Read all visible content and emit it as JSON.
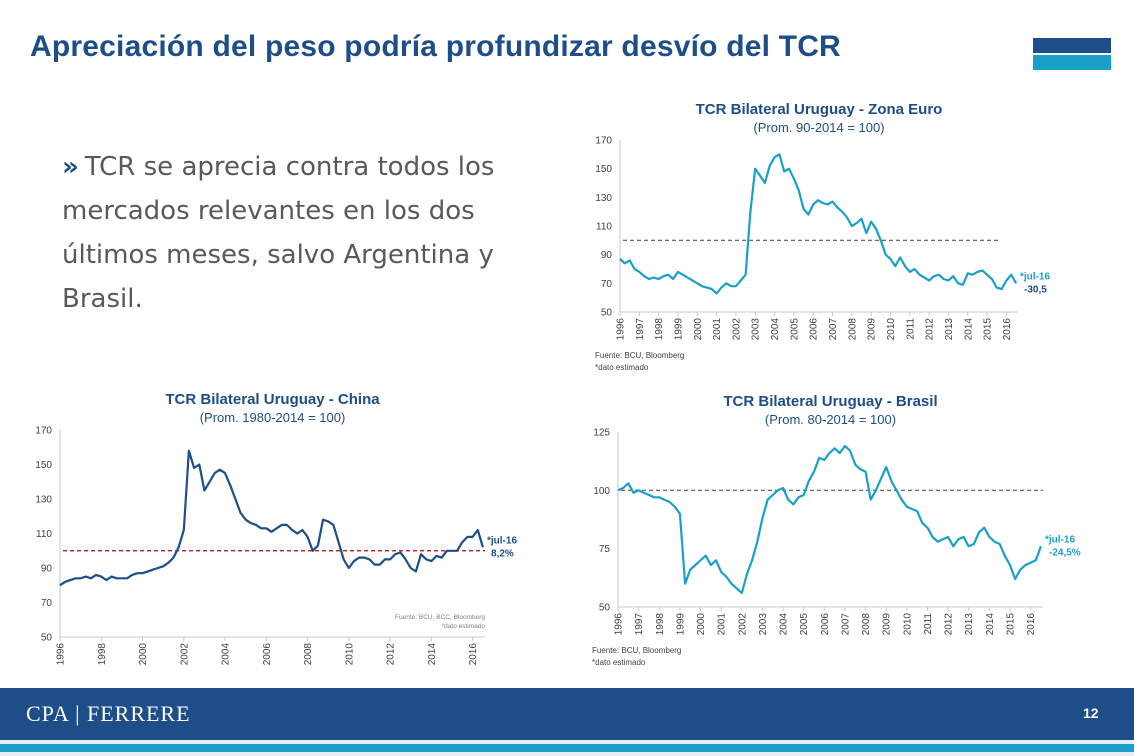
{
  "slide": {
    "title": "Apreciación del peso podría profundizar desvío del TCR",
    "bullet_marker": "»",
    "bullet_text": "TCR se aprecia contra todos los mercados relevantes en los dos últimos meses, salvo Argentina y Brasil.",
    "footer_brand": "CPA | FERRERE",
    "page_number": "12",
    "colors": {
      "title": "#1d4e89",
      "footer_bg": "#1d4e89",
      "accent": "#1aa0c8",
      "body_text": "#595959"
    }
  },
  "chart_data": [
    {
      "id": "euro",
      "type": "line",
      "title": "TCR Bilateral Uruguay - Zona Euro",
      "subtitle": "(Prom. 90-2014 = 100)",
      "xlabel": "",
      "ylabel": "",
      "x_ticks": [
        "1996",
        "1997",
        "1998",
        "1999",
        "2000",
        "2001",
        "2002",
        "2003",
        "2004",
        "2005",
        "2006",
        "2007",
        "2008",
        "2009",
        "2010",
        "2011",
        "2012",
        "2013",
        "2014",
        "2015",
        "2016"
      ],
      "xlim": [
        1996,
        2016.6
      ],
      "y_ticks": [
        50,
        70,
        90,
        110,
        130,
        150,
        170
      ],
      "ylim": [
        50,
        170
      ],
      "grid": false,
      "reference_line": {
        "value": 100,
        "style": "dashed",
        "color": "#555555"
      },
      "series_color": "#1aa0c8",
      "x": [
        1996.0,
        1996.25,
        1996.5,
        1996.75,
        1997.0,
        1997.25,
        1997.5,
        1997.75,
        1998.0,
        1998.25,
        1998.5,
        1998.75,
        1999.0,
        1999.25,
        1999.5,
        1999.75,
        2000.0,
        2000.25,
        2000.5,
        2000.75,
        2001.0,
        2001.25,
        2001.5,
        2001.75,
        2002.0,
        2002.25,
        2002.5,
        2002.75,
        2003.0,
        2003.25,
        2003.5,
        2003.75,
        2004.0,
        2004.25,
        2004.5,
        2004.75,
        2005.0,
        2005.25,
        2005.5,
        2005.75,
        2006.0,
        2006.25,
        2006.5,
        2006.75,
        2007.0,
        2007.25,
        2007.5,
        2007.75,
        2008.0,
        2008.25,
        2008.5,
        2008.75,
        2009.0,
        2009.25,
        2009.5,
        2009.75,
        2010.0,
        2010.25,
        2010.5,
        2010.75,
        2011.0,
        2011.25,
        2011.5,
        2011.75,
        2012.0,
        2012.25,
        2012.5,
        2012.75,
        2013.0,
        2013.25,
        2013.5,
        2013.75,
        2014.0,
        2014.25,
        2014.5,
        2014.75,
        2015.0,
        2015.25,
        2015.5,
        2015.75,
        2016.0,
        2016.25,
        2016.5
      ],
      "values": [
        87,
        84,
        86,
        80,
        78,
        75,
        73,
        74,
        73,
        75,
        76,
        73,
        78,
        76,
        74,
        72,
        70,
        68,
        67,
        66,
        63,
        67,
        70,
        68,
        68,
        72,
        76,
        120,
        150,
        145,
        140,
        152,
        158,
        160,
        148,
        150,
        143,
        135,
        122,
        118,
        125,
        128,
        126,
        125,
        127,
        123,
        120,
        116,
        110,
        112,
        115,
        105,
        113,
        108,
        100,
        90,
        87,
        82,
        88,
        82,
        78,
        80,
        76,
        74,
        72,
        75,
        76,
        73,
        72,
        75,
        70,
        69,
        77,
        76,
        78,
        79,
        76,
        73,
        67,
        66,
        72,
        76,
        70
      ],
      "annotation": {
        "label": "*jul-16",
        "value_label": "-30,5",
        "color": "#1aa0c8"
      },
      "source": "Fuente: BCU, Bloomberg",
      "note": "*dato estimado"
    },
    {
      "id": "china",
      "type": "line",
      "title": "TCR Bilateral Uruguay - China",
      "subtitle": "(Prom. 1980-2014 = 100)",
      "xlabel": "",
      "ylabel": "",
      "x_ticks": [
        "1996",
        "1998",
        "2000",
        "2002",
        "2004",
        "2006",
        "2008",
        "2010",
        "2012",
        "2014",
        "2016"
      ],
      "xlim": [
        1996,
        2016.6
      ],
      "y_ticks": [
        50,
        70,
        90,
        110,
        130,
        150,
        170
      ],
      "ylim": [
        50,
        170
      ],
      "grid": false,
      "reference_line": {
        "value": 100,
        "style": "dashed",
        "color": "#c00000"
      },
      "series_color": "#1d4e89",
      "x": [
        1996.0,
        1996.25,
        1996.5,
        1996.75,
        1997.0,
        1997.25,
        1997.5,
        1997.75,
        1998.0,
        1998.25,
        1998.5,
        1998.75,
        1999.0,
        1999.25,
        1999.5,
        1999.75,
        2000.0,
        2000.25,
        2000.5,
        2000.75,
        2001.0,
        2001.25,
        2001.5,
        2001.75,
        2002.0,
        2002.25,
        2002.5,
        2002.75,
        2003.0,
        2003.25,
        2003.5,
        2003.75,
        2004.0,
        2004.25,
        2004.5,
        2004.75,
        2005.0,
        2005.25,
        2005.5,
        2005.75,
        2006.0,
        2006.25,
        2006.5,
        2006.75,
        2007.0,
        2007.25,
        2007.5,
        2007.75,
        2008.0,
        2008.25,
        2008.5,
        2008.75,
        2009.0,
        2009.25,
        2009.5,
        2009.75,
        2010.0,
        2010.25,
        2010.5,
        2010.75,
        2011.0,
        2011.25,
        2011.5,
        2011.75,
        2012.0,
        2012.25,
        2012.5,
        2012.75,
        2013.0,
        2013.25,
        2013.5,
        2013.75,
        2014.0,
        2014.25,
        2014.5,
        2014.75,
        2015.0,
        2015.25,
        2015.5,
        2015.75,
        2016.0,
        2016.25,
        2016.5
      ],
      "values": [
        80,
        82,
        83,
        84,
        84,
        85,
        84,
        86,
        85,
        83,
        85,
        84,
        84,
        84,
        86,
        87,
        87,
        88,
        89,
        90,
        91,
        93,
        96,
        102,
        112,
        158,
        148,
        150,
        135,
        140,
        145,
        147,
        145,
        138,
        130,
        122,
        118,
        116,
        115,
        113,
        113,
        111,
        113,
        115,
        115,
        112,
        110,
        112,
        108,
        100,
        103,
        118,
        117,
        115,
        105,
        95,
        90,
        94,
        96,
        96,
        95,
        92,
        92,
        95,
        95,
        98,
        99,
        95,
        90,
        88,
        98,
        95,
        94,
        97,
        96,
        100,
        100,
        100,
        105,
        108,
        108,
        112,
        102
      ],
      "annotation": {
        "label": "*jul-16",
        "value_label": "8,2%",
        "color": "#1d4e89"
      },
      "source": "Fuente: BCU, BCC, Bloomberg",
      "note": "*dato estimado"
    },
    {
      "id": "brasil",
      "type": "line",
      "title": "TCR Bilateral Uruguay - Brasil",
      "subtitle": "(Prom. 80-2014 = 100)",
      "xlabel": "",
      "ylabel": "",
      "x_ticks": [
        "1996",
        "1997",
        "1998",
        "1999",
        "2000",
        "2001",
        "2002",
        "2003",
        "2004",
        "2005",
        "2006",
        "2007",
        "2008",
        "2009",
        "2010",
        "2011",
        "2012",
        "2013",
        "2014",
        "2015",
        "2016"
      ],
      "xlim": [
        1996,
        2016.6
      ],
      "y_ticks": [
        50,
        75,
        100,
        125
      ],
      "ylim": [
        50,
        125
      ],
      "grid": false,
      "reference_line": {
        "value": 100,
        "style": "dashed",
        "color": "#555555"
      },
      "series_color": "#1aa0c8",
      "x": [
        1996.0,
        1996.25,
        1996.5,
        1996.75,
        1997.0,
        1997.25,
        1997.5,
        1997.75,
        1998.0,
        1998.25,
        1998.5,
        1998.75,
        1999.0,
        1999.25,
        1999.5,
        1999.75,
        2000.0,
        2000.25,
        2000.5,
        2000.75,
        2001.0,
        2001.25,
        2001.5,
        2001.75,
        2002.0,
        2002.25,
        2002.5,
        2002.75,
        2003.0,
        2003.25,
        2003.5,
        2003.75,
        2004.0,
        2004.25,
        2004.5,
        2004.75,
        2005.0,
        2005.25,
        2005.5,
        2005.75,
        2006.0,
        2006.25,
        2006.5,
        2006.75,
        2007.0,
        2007.25,
        2007.5,
        2007.75,
        2008.0,
        2008.25,
        2008.5,
        2008.75,
        2009.0,
        2009.25,
        2009.5,
        2009.75,
        2010.0,
        2010.25,
        2010.5,
        2010.75,
        2011.0,
        2011.25,
        2011.5,
        2011.75,
        2012.0,
        2012.25,
        2012.5,
        2012.75,
        2013.0,
        2013.25,
        2013.5,
        2013.75,
        2014.0,
        2014.25,
        2014.5,
        2014.75,
        2015.0,
        2015.25,
        2015.5,
        2015.75,
        2016.0,
        2016.25,
        2016.5
      ],
      "values": [
        100,
        101,
        103,
        99,
        100,
        99,
        98,
        97,
        97,
        96,
        95,
        93,
        90,
        60,
        66,
        68,
        70,
        72,
        68,
        70,
        65,
        63,
        60,
        58,
        56,
        64,
        70,
        78,
        88,
        96,
        98,
        100,
        101,
        96,
        94,
        97,
        98,
        104,
        108,
        114,
        113,
        116,
        118,
        116,
        119,
        117,
        111,
        109,
        108,
        96,
        100,
        105,
        110,
        104,
        100,
        96,
        93,
        92,
        91,
        86,
        84,
        80,
        78,
        79,
        80,
        76,
        79,
        80,
        76,
        77,
        82,
        84,
        80,
        78,
        77,
        72,
        68,
        62,
        66,
        68,
        69,
        70,
        76
      ],
      "annotation": {
        "label": "*jul-16",
        "value_label": "-24,5%",
        "color": "#1aa0c8"
      },
      "source": "Fuente: BCU, Bloomberg",
      "note": "*dato estimado"
    }
  ]
}
